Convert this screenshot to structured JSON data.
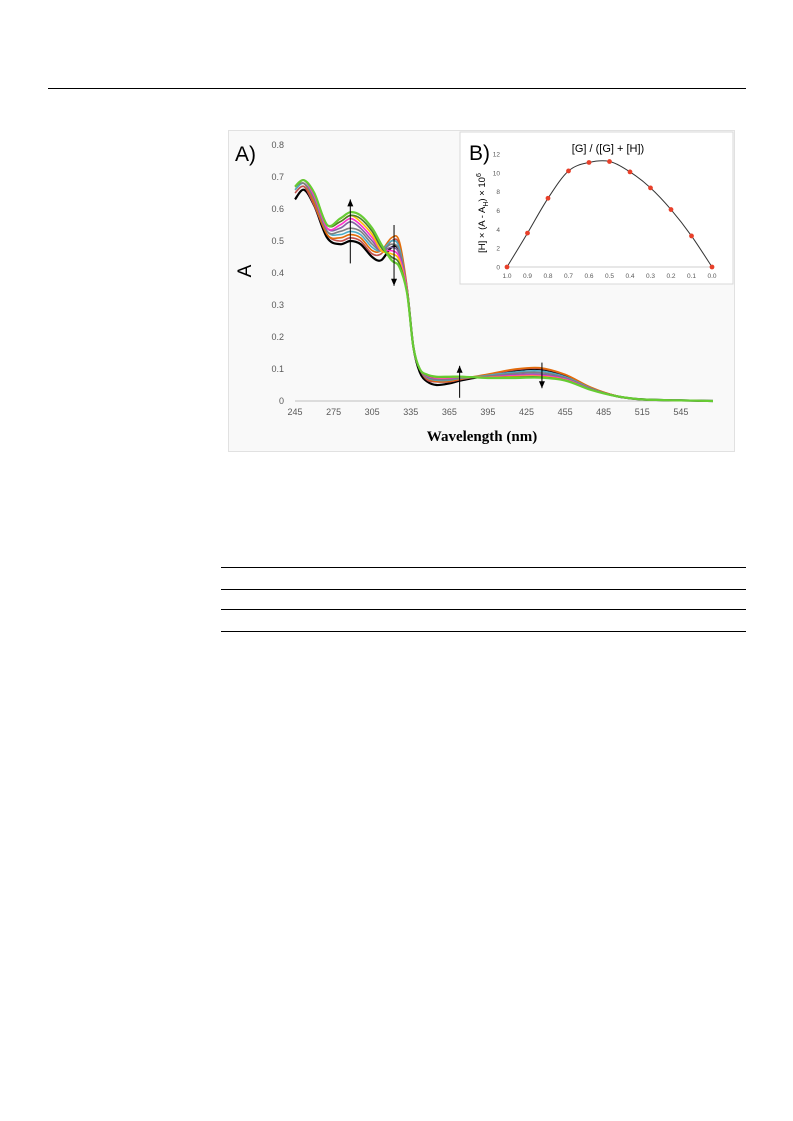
{
  "figure": {
    "panelA": {
      "label": "A)",
      "ylabel": "A",
      "xlabel": "Wavelength (nm)",
      "xticks": [
        "245",
        "275",
        "305",
        "335",
        "365",
        "395",
        "425",
        "455",
        "485",
        "515",
        "545"
      ],
      "yticks": [
        "0",
        "0.1",
        "0.2",
        "0.3",
        "0.4",
        "0.5",
        "0.6",
        "0.7",
        "0.8"
      ]
    },
    "panelB": {
      "label": "B)",
      "title": "[G] / ([G] + [H])",
      "ylabel": "[H] × (A - A_H) × 10^6",
      "xticks": [
        "1.0",
        "0.9",
        "0.8",
        "0.7",
        "0.6",
        "0.5",
        "0.4",
        "0.3",
        "0.2",
        "0.1",
        "0.0"
      ],
      "yticks": [
        "0",
        "2",
        "4",
        "6",
        "8",
        "10",
        "12"
      ]
    }
  },
  "chart_data": [
    {
      "type": "line",
      "xlabel": "Wavelength (nm)",
      "ylabel": "A",
      "xlim": [
        245,
        570
      ],
      "ylim": [
        0,
        0.8
      ],
      "grid": false,
      "annotations": [
        "arrow up at 288 nm",
        "arrow down at 322 nm",
        "arrow up at 373 nm",
        "arrow down at 437 nm"
      ],
      "x": [
        245,
        252,
        260,
        270,
        280,
        288,
        296,
        305,
        312,
        320,
        326,
        332,
        337,
        342,
        348,
        355,
        365,
        375,
        395,
        415,
        435,
        455,
        475,
        495,
        515,
        545,
        570
      ],
      "series": [
        {
          "color": "#000000",
          "values": [
            0.63,
            0.66,
            0.61,
            0.51,
            0.49,
            0.5,
            0.49,
            0.45,
            0.44,
            0.48,
            0.47,
            0.35,
            0.17,
            0.09,
            0.06,
            0.05,
            0.055,
            0.065,
            0.08,
            0.095,
            0.1,
            0.08,
            0.04,
            0.015,
            0.005,
            0.002,
            0.0
          ]
        },
        {
          "color": "#c0504d",
          "values": [
            0.65,
            0.67,
            0.61,
            0.52,
            0.5,
            0.51,
            0.5,
            0.46,
            0.46,
            0.5,
            0.49,
            0.35,
            0.17,
            0.1,
            0.065,
            0.06,
            0.06,
            0.068,
            0.082,
            0.097,
            0.102,
            0.082,
            0.042,
            0.016,
            0.005,
            0.002,
            0.0
          ]
        },
        {
          "color": "#e36c09",
          "values": [
            0.66,
            0.68,
            0.62,
            0.52,
            0.51,
            0.52,
            0.51,
            0.47,
            0.47,
            0.51,
            0.5,
            0.36,
            0.17,
            0.1,
            0.07,
            0.062,
            0.062,
            0.07,
            0.084,
            0.099,
            0.104,
            0.083,
            0.043,
            0.016,
            0.005,
            0.002,
            0.0
          ]
        },
        {
          "color": "#4bacc6",
          "values": [
            0.66,
            0.68,
            0.63,
            0.53,
            0.52,
            0.53,
            0.52,
            0.48,
            0.47,
            0.5,
            0.48,
            0.35,
            0.17,
            0.1,
            0.072,
            0.065,
            0.065,
            0.072,
            0.08,
            0.09,
            0.094,
            0.076,
            0.04,
            0.015,
            0.005,
            0.002,
            0.0
          ]
        },
        {
          "color": "#7f7f7f",
          "values": [
            0.67,
            0.68,
            0.63,
            0.53,
            0.53,
            0.54,
            0.53,
            0.49,
            0.47,
            0.49,
            0.47,
            0.35,
            0.17,
            0.1,
            0.074,
            0.067,
            0.067,
            0.073,
            0.078,
            0.086,
            0.089,
            0.073,
            0.039,
            0.015,
            0.005,
            0.002,
            0.0
          ]
        },
        {
          "color": "#8064a2",
          "values": [
            0.67,
            0.69,
            0.64,
            0.54,
            0.54,
            0.56,
            0.54,
            0.5,
            0.47,
            0.48,
            0.46,
            0.35,
            0.17,
            0.1,
            0.076,
            0.07,
            0.07,
            0.074,
            0.076,
            0.082,
            0.084,
            0.07,
            0.038,
            0.015,
            0.005,
            0.002,
            0.0
          ]
        },
        {
          "color": "#ff33cc",
          "values": [
            0.67,
            0.69,
            0.64,
            0.54,
            0.55,
            0.57,
            0.55,
            0.51,
            0.47,
            0.47,
            0.45,
            0.35,
            0.17,
            0.1,
            0.078,
            0.072,
            0.072,
            0.075,
            0.075,
            0.079,
            0.08,
            0.068,
            0.037,
            0.015,
            0.005,
            0.002,
            0.0
          ]
        },
        {
          "color": "#ffc000",
          "values": [
            0.67,
            0.69,
            0.65,
            0.55,
            0.56,
            0.58,
            0.56,
            0.52,
            0.47,
            0.46,
            0.44,
            0.34,
            0.17,
            0.1,
            0.08,
            0.074,
            0.074,
            0.076,
            0.074,
            0.076,
            0.077,
            0.066,
            0.036,
            0.015,
            0.005,
            0.002,
            0.0
          ]
        },
        {
          "color": "#4a7a2a",
          "values": [
            0.67,
            0.69,
            0.65,
            0.55,
            0.56,
            0.58,
            0.57,
            0.53,
            0.48,
            0.45,
            0.43,
            0.34,
            0.17,
            0.1,
            0.08,
            0.075,
            0.075,
            0.076,
            0.073,
            0.074,
            0.075,
            0.065,
            0.036,
            0.015,
            0.005,
            0.002,
            0.0
          ]
        },
        {
          "color": "#66cc33",
          "values": [
            0.67,
            0.69,
            0.65,
            0.55,
            0.57,
            0.59,
            0.58,
            0.54,
            0.49,
            0.44,
            0.42,
            0.34,
            0.17,
            0.1,
            0.082,
            0.076,
            0.076,
            0.076,
            0.072,
            0.072,
            0.073,
            0.064,
            0.035,
            0.015,
            0.005,
            0.002,
            0.0
          ]
        }
      ]
    },
    {
      "type": "scatter",
      "title": "[G] / ([G] + [H])",
      "ylabel": "[H] × (A - A_H) × 10^6",
      "xlim": [
        1.0,
        0.0
      ],
      "ylim": [
        0,
        12
      ],
      "grid": false,
      "point_color": "#e8402a",
      "fit_line": true,
      "x": [
        1.0,
        0.9,
        0.8,
        0.7,
        0.6,
        0.5,
        0.4,
        0.3,
        0.2,
        0.1,
        0.0
      ],
      "values": [
        0.0,
        3.6,
        7.3,
        10.2,
        11.1,
        11.2,
        10.1,
        8.4,
        6.1,
        3.3,
        0.0
      ]
    }
  ]
}
